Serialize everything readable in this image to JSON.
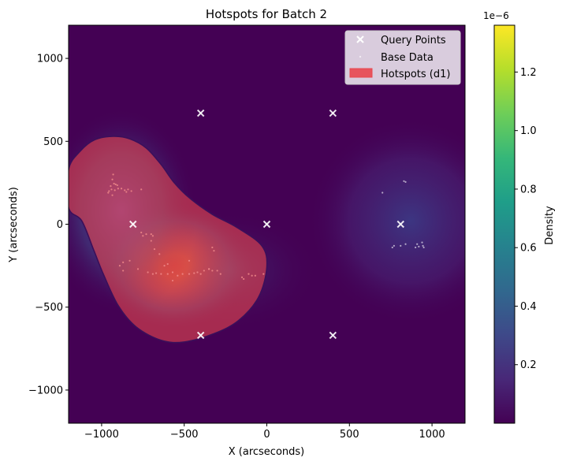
{
  "chart_data": {
    "type": "heatmap",
    "title": "Hotspots for Batch 2",
    "xlabel": "X (arcseconds)",
    "ylabel": "Y (arcseconds)",
    "xlim": [
      -1200,
      1200
    ],
    "ylim": [
      -1200,
      1200
    ],
    "xticks": [
      -1000,
      -500,
      0,
      500,
      1000
    ],
    "yticks": [
      -1000,
      -500,
      0,
      500,
      1000
    ],
    "xtick_labels": [
      "−1000",
      "−500",
      "0",
      "500",
      "1000"
    ],
    "ytick_labels": [
      "−1000",
      "−500",
      "0",
      "500",
      "1000"
    ],
    "grid": false,
    "legend_position": "top-right",
    "legend": [
      {
        "label": "Query Points",
        "marker": "x",
        "color": "#ffffff"
      },
      {
        "label": "Base Data",
        "marker": "dot",
        "color": "#ffffff"
      },
      {
        "label": "Hotspots (d1)",
        "marker": "patch",
        "color": "#e8474f"
      }
    ],
    "query_points": [
      [
        -400,
        670
      ],
      [
        400,
        670
      ],
      [
        -810,
        0
      ],
      [
        0,
        0
      ],
      [
        810,
        0
      ],
      [
        -400,
        -670
      ],
      [
        400,
        -670
      ]
    ],
    "density_components": [
      {
        "cx": -560,
        "cy": -250,
        "sx": 200,
        "sy": 160,
        "weight": 1.0
      },
      {
        "cx": -880,
        "cy": 80,
        "sx": 190,
        "sy": 260,
        "weight": 0.55
      },
      {
        "cx": -230,
        "cy": -280,
        "sx": 230,
        "sy": 150,
        "weight": 0.35
      },
      {
        "cx": 870,
        "cy": 20,
        "sx": 260,
        "sy": 260,
        "weight": 0.13
      }
    ],
    "hotspot_contour": [
      [
        -1200,
        330
      ],
      [
        -1130,
        440
      ],
      [
        -1040,
        510
      ],
      [
        -930,
        530
      ],
      [
        -830,
        515
      ],
      [
        -730,
        460
      ],
      [
        -640,
        360
      ],
      [
        -560,
        250
      ],
      [
        -470,
        160
      ],
      [
        -330,
        60
      ],
      [
        -180,
        -20
      ],
      [
        -30,
        -130
      ],
      [
        0,
        -260
      ],
      [
        -50,
        -440
      ],
      [
        -170,
        -580
      ],
      [
        -320,
        -660
      ],
      [
        -500,
        -710
      ],
      [
        -640,
        -700
      ],
      [
        -790,
        -620
      ],
      [
        -900,
        -490
      ],
      [
        -990,
        -300
      ],
      [
        -1050,
        -150
      ],
      [
        -1120,
        20
      ],
      [
        -1200,
        100
      ]
    ],
    "base_data_red": [
      [
        -930,
        300
      ],
      [
        -935,
        270
      ],
      [
        -925,
        245
      ],
      [
        -915,
        240
      ],
      [
        -905,
        235
      ],
      [
        -945,
        230
      ],
      [
        -900,
        215
      ],
      [
        -940,
        210
      ],
      [
        -920,
        205
      ],
      [
        -880,
        215
      ],
      [
        -860,
        205
      ],
      [
        -840,
        210
      ],
      [
        -820,
        200
      ],
      [
        -955,
        200
      ],
      [
        -960,
        190
      ],
      [
        -935,
        175
      ],
      [
        -850,
        195
      ],
      [
        -760,
        210
      ],
      [
        -700,
        -60
      ],
      [
        -690,
        -70
      ],
      [
        -730,
        -60
      ],
      [
        -760,
        -50
      ],
      [
        -750,
        -70
      ],
      [
        -700,
        -100
      ],
      [
        -680,
        -150
      ],
      [
        -650,
        -180
      ],
      [
        -830,
        -220
      ],
      [
        -870,
        -230
      ],
      [
        -890,
        -250
      ],
      [
        -870,
        -280
      ],
      [
        -780,
        -270
      ],
      [
        -720,
        -290
      ],
      [
        -690,
        -300
      ],
      [
        -670,
        -295
      ],
      [
        -640,
        -300
      ],
      [
        -600,
        -300
      ],
      [
        -570,
        -290
      ],
      [
        -540,
        -310
      ],
      [
        -510,
        -300
      ],
      [
        -470,
        -300
      ],
      [
        -440,
        -295
      ],
      [
        -420,
        -290
      ],
      [
        -400,
        -300
      ],
      [
        -380,
        -280
      ],
      [
        -350,
        -270
      ],
      [
        -330,
        -280
      ],
      [
        -300,
        -280
      ],
      [
        -330,
        -140
      ],
      [
        -320,
        -160
      ],
      [
        -280,
        -300
      ],
      [
        -150,
        -320
      ],
      [
        -140,
        -330
      ],
      [
        -110,
        -300
      ],
      [
        -90,
        -310
      ],
      [
        -70,
        -310
      ],
      [
        -20,
        -300
      ],
      [
        -570,
        -340
      ],
      [
        -600,
        -240
      ],
      [
        -470,
        -220
      ],
      [
        -620,
        -250
      ],
      [
        -350,
        -270
      ]
    ],
    "base_data_white": [
      [
        700,
        190
      ],
      [
        830,
        260
      ],
      [
        840,
        255
      ],
      [
        760,
        -140
      ],
      [
        770,
        -130
      ],
      [
        810,
        -130
      ],
      [
        840,
        -120
      ],
      [
        900,
        -140
      ],
      [
        910,
        -120
      ],
      [
        920,
        -135
      ],
      [
        940,
        -110
      ],
      [
        945,
        -130
      ],
      [
        950,
        -140
      ]
    ],
    "colorbar": {
      "label": "Density",
      "multiplier": "1e−6",
      "min": 0,
      "max": 1.36,
      "ticks": [
        0.2,
        0.4,
        0.6,
        0.8,
        1.0,
        1.2
      ],
      "tick_labels": [
        "0.2",
        "0.4",
        "0.6",
        "0.8",
        "1.0",
        "1.2"
      ],
      "colors": [
        "#440154",
        "#482878",
        "#3e4989",
        "#31688e",
        "#26828e",
        "#1f9e89",
        "#35b779",
        "#6ece58",
        "#b5de2b",
        "#fde725"
      ]
    },
    "hotspot_color": "#e8474f"
  }
}
